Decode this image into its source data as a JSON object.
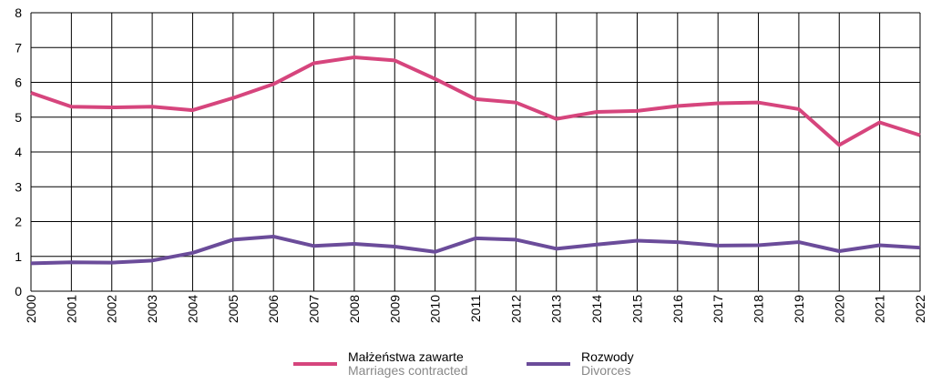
{
  "chart_data": {
    "type": "line",
    "categories": [
      "2000",
      "2001",
      "2002",
      "2003",
      "2004",
      "2005",
      "2006",
      "2007",
      "2008",
      "2009",
      "2010",
      "2011",
      "2012",
      "2013",
      "2014",
      "2015",
      "2016",
      "2017",
      "2018",
      "2019",
      "2020",
      "2021",
      "2022"
    ],
    "series": [
      {
        "name": "Małżeństwa zawarte",
        "name_en": "Marriages contracted",
        "color": "#d6457d",
        "values": [
          5.7,
          5.3,
          5.28,
          5.3,
          5.2,
          5.55,
          5.95,
          6.55,
          6.72,
          6.63,
          6.1,
          5.52,
          5.42,
          4.95,
          5.15,
          5.18,
          5.32,
          5.4,
          5.42,
          5.23,
          4.2,
          4.85,
          4.48
        ]
      },
      {
        "name": "Rozwody",
        "name_en": "Divorces",
        "color": "#6b4c9a",
        "values": [
          0.8,
          0.83,
          0.82,
          0.88,
          1.1,
          1.48,
          1.57,
          1.3,
          1.36,
          1.28,
          1.13,
          1.52,
          1.48,
          1.22,
          1.34,
          1.45,
          1.41,
          1.31,
          1.32,
          1.41,
          1.15,
          1.32,
          1.25
        ]
      }
    ],
    "ylim": [
      0,
      8
    ],
    "yticks": [
      0,
      1,
      2,
      3,
      4,
      5,
      6,
      7,
      8
    ],
    "grid": true
  }
}
